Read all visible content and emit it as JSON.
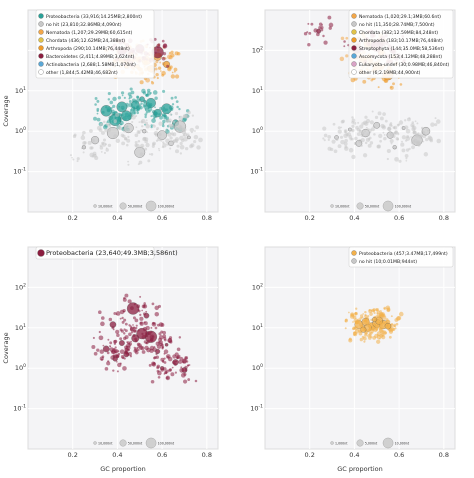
{
  "chart_data": [
    {
      "type": "scatter",
      "xlabel": "",
      "ylabel": "Coverage",
      "xlim": [
        0.0,
        0.85
      ],
      "ylim_log10": [
        -2,
        3
      ],
      "y_scale": "log",
      "xticks": [
        "0.2",
        "0.4",
        "0.6",
        "0.8"
      ],
      "yticks": [
        "10^{-1}",
        "10^{0}",
        "10^{1}"
      ],
      "grid": true,
      "legend_position": "top-left",
      "legend": [
        {
          "label": "Proteobacteria (33,916;14.25MB;2,800nt)",
          "color": "#2aa198"
        },
        {
          "label": "no hit (23,810;32.86MB;4,090nt)",
          "color": "#c8c8c8"
        },
        {
          "label": "Nematoda (1,207;29.29MB;60,615nt)",
          "color": "#f2a74a"
        },
        {
          "label": "Chordata (436;12.62MB;24,388nt)",
          "color": "#e0c24a"
        },
        {
          "label": "Arthropoda (290;10.14MB;76,448nt)",
          "color": "#ee9a2a"
        },
        {
          "label": "Bacteroidetes (2,411;4.89MB;3,624nt)",
          "color": "#8b1d3f"
        },
        {
          "label": "Actinobacteria (2,688;1.58MB;1,070nt)",
          "color": "#5aa7d6"
        },
        {
          "label": "other (1,844;5.42MB;46,682nt)",
          "color": "#ffffff"
        }
      ],
      "series": [
        {
          "name": "Proteobacteria",
          "color": "#2aa198",
          "points": [
            [
              0.35,
              3.2
            ],
            [
              0.42,
              4.0
            ],
            [
              0.48,
              4.5
            ],
            [
              0.55,
              5.0
            ],
            [
              0.62,
              3.6
            ],
            [
              0.44,
              2.4
            ],
            [
              0.58,
              2.8
            ],
            [
              0.66,
              1.6
            ],
            [
              0.39,
              1.9
            ],
            [
              0.51,
              6.2
            ]
          ]
        },
        {
          "name": "no hit",
          "color": "#c8c8c8",
          "points": [
            [
              0.3,
              0.6
            ],
            [
              0.38,
              0.9
            ],
            [
              0.45,
              1.2
            ],
            [
              0.52,
              1.0
            ],
            [
              0.6,
              0.8
            ],
            [
              0.68,
              1.3
            ],
            [
              0.72,
              0.7
            ],
            [
              0.25,
              0.4
            ],
            [
              0.5,
              0.3
            ],
            [
              0.64,
              0.5
            ]
          ]
        },
        {
          "name": "Nematoda",
          "color": "#f2a74a",
          "points": [
            [
              0.41,
              60
            ],
            [
              0.46,
              80
            ],
            [
              0.53,
              55
            ],
            [
              0.58,
              70
            ],
            [
              0.49,
              40
            ]
          ]
        },
        {
          "name": "Arthropoda",
          "color": "#ee9a2a",
          "points": [
            [
              0.44,
              40
            ],
            [
              0.55,
              35
            ],
            [
              0.62,
              45
            ]
          ]
        },
        {
          "name": "Bacteroidetes",
          "color": "#8b1d3f",
          "points": [
            [
              0.42,
              95
            ],
            [
              0.5,
              110
            ],
            [
              0.58,
              90
            ]
          ]
        }
      ],
      "size_legend": [
        "10,000nt",
        "50,000nt",
        "100,000nt"
      ]
    },
    {
      "type": "scatter",
      "xlabel": "",
      "ylabel": "",
      "xlim": [
        0.0,
        0.85
      ],
      "ylim_log10": [
        -2,
        3
      ],
      "y_scale": "log",
      "xticks": [
        "0.2",
        "0.4",
        "0.6",
        "0.8"
      ],
      "yticks": [
        "10^{-1}",
        "10^{0}",
        "10^{1}",
        "10^{2}"
      ],
      "grid": true,
      "legend_position": "top-right",
      "legend": [
        {
          "label": "Nematoda (1,020;29.1;3MB;60.6nt)",
          "color": "#f2a74a"
        },
        {
          "label": "no hit (11,350;28.74MB;7,500nt)",
          "color": "#c8c8c8"
        },
        {
          "label": "Chordata (382;12.59MB;84,248nt)",
          "color": "#e0c24a"
        },
        {
          "label": "Arthropoda (183;10.17MB;76,448nt)",
          "color": "#ee9a2a"
        },
        {
          "label": "Streptophyta (144;35.0MB;58,536nt)",
          "color": "#8b1d3f"
        },
        {
          "label": "Ascomycota (153;4.12MB;48,288nt)",
          "color": "#5aa7d6"
        },
        {
          "label": "Eukaryota-undef (30;0.98MB;46,840nt)",
          "color": "#d9a3c6"
        },
        {
          "label": "other (6;2.19MB;44,900nt)",
          "color": "#ffffff"
        }
      ],
      "series": [
        {
          "name": "no hit",
          "color": "#c8c8c8",
          "points": [
            [
              0.32,
              0.7
            ],
            [
              0.38,
              1.1
            ],
            [
              0.45,
              0.9
            ],
            [
              0.5,
              1.4
            ],
            [
              0.56,
              0.8
            ],
            [
              0.62,
              1.2
            ],
            [
              0.68,
              0.6
            ],
            [
              0.42,
              0.5
            ],
            [
              0.58,
              0.4
            ],
            [
              0.72,
              1.0
            ]
          ]
        },
        {
          "name": "Nematoda",
          "color": "#f2a74a",
          "points": [
            [
              0.4,
              120
            ],
            [
              0.46,
              150
            ],
            [
              0.52,
              90
            ],
            [
              0.5,
              40
            ],
            [
              0.44,
              60
            ]
          ]
        },
        {
          "name": "Arthropoda",
          "color": "#ee9a2a",
          "points": [
            [
              0.43,
              30
            ],
            [
              0.55,
              25
            ]
          ]
        },
        {
          "name": "Streptophyta",
          "color": "#8b1d3f",
          "points": [
            [
              0.41,
              110
            ],
            [
              0.5,
              130
            ],
            [
              0.57,
              100
            ],
            [
              0.24,
              300
            ]
          ]
        }
      ],
      "size_legend": [
        "10,000nt",
        "50,000nt",
        "100,000nt"
      ]
    },
    {
      "type": "scatter",
      "xlabel": "GC proportion",
      "ylabel": "Coverage",
      "xlim": [
        0.0,
        0.85
      ],
      "ylim_log10": [
        -2,
        3
      ],
      "y_scale": "log",
      "xticks": [
        "0.2",
        "0.4",
        "0.6",
        "0.8"
      ],
      "yticks": [
        "10^{-1}",
        "10^{0}",
        "10^{1}",
        "10^{2}"
      ],
      "grid": true,
      "legend_position": "top-left",
      "legend": [
        {
          "label": "Proteobacteria (23,640;49.3MB;3,586nt)",
          "color": "#8b1d3f"
        }
      ],
      "series": [
        {
          "name": "Proteobacteria",
          "color": "#8b1d3f",
          "points": [
            [
              0.35,
              3.0
            ],
            [
              0.42,
              4.2
            ],
            [
              0.48,
              5.5
            ],
            [
              0.55,
              6.0
            ],
            [
              0.62,
              3.8
            ],
            [
              0.44,
              2.2
            ],
            [
              0.58,
              2.6
            ],
            [
              0.66,
              1.4
            ],
            [
              0.39,
              1.7
            ],
            [
              0.51,
              7.2
            ],
            [
              0.6,
              1.0
            ],
            [
              0.7,
              0.9
            ],
            [
              0.47,
              30
            ],
            [
              0.53,
              20
            ],
            [
              0.38,
              12
            ]
          ]
        }
      ],
      "size_legend": [
        "10,000nt",
        "50,000nt",
        "100,000nt"
      ]
    },
    {
      "type": "scatter",
      "xlabel": "GC proportion",
      "ylabel": "",
      "xlim": [
        0.0,
        0.85
      ],
      "ylim_log10": [
        -2,
        3
      ],
      "y_scale": "log",
      "xticks": [
        "0.2",
        "0.4",
        "0.6",
        "0.8"
      ],
      "yticks": [
        "10^{-1}",
        "10^{0}",
        "10^{1}",
        "10^{2}"
      ],
      "grid": true,
      "legend_position": "top-right",
      "legend": [
        {
          "label": "Proteobacteria (457;3.47MB;17,499nt)",
          "color": "#f2b04a"
        },
        {
          "label": "no hit (10;0.01MB;944nt)",
          "color": "#c8c8c8"
        }
      ],
      "series": [
        {
          "name": "Proteobacteria",
          "color": "#f2b04a",
          "points": [
            [
              0.42,
              12
            ],
            [
              0.45,
              14
            ],
            [
              0.48,
              11
            ],
            [
              0.5,
              13
            ],
            [
              0.53,
              12
            ],
            [
              0.46,
              10
            ],
            [
              0.51,
              15
            ],
            [
              0.44,
              9
            ],
            [
              0.55,
              11
            ],
            [
              0.49,
              16
            ]
          ]
        }
      ],
      "size_legend": [
        "1,000nt",
        "5,000nt",
        "10,000nt"
      ]
    }
  ]
}
